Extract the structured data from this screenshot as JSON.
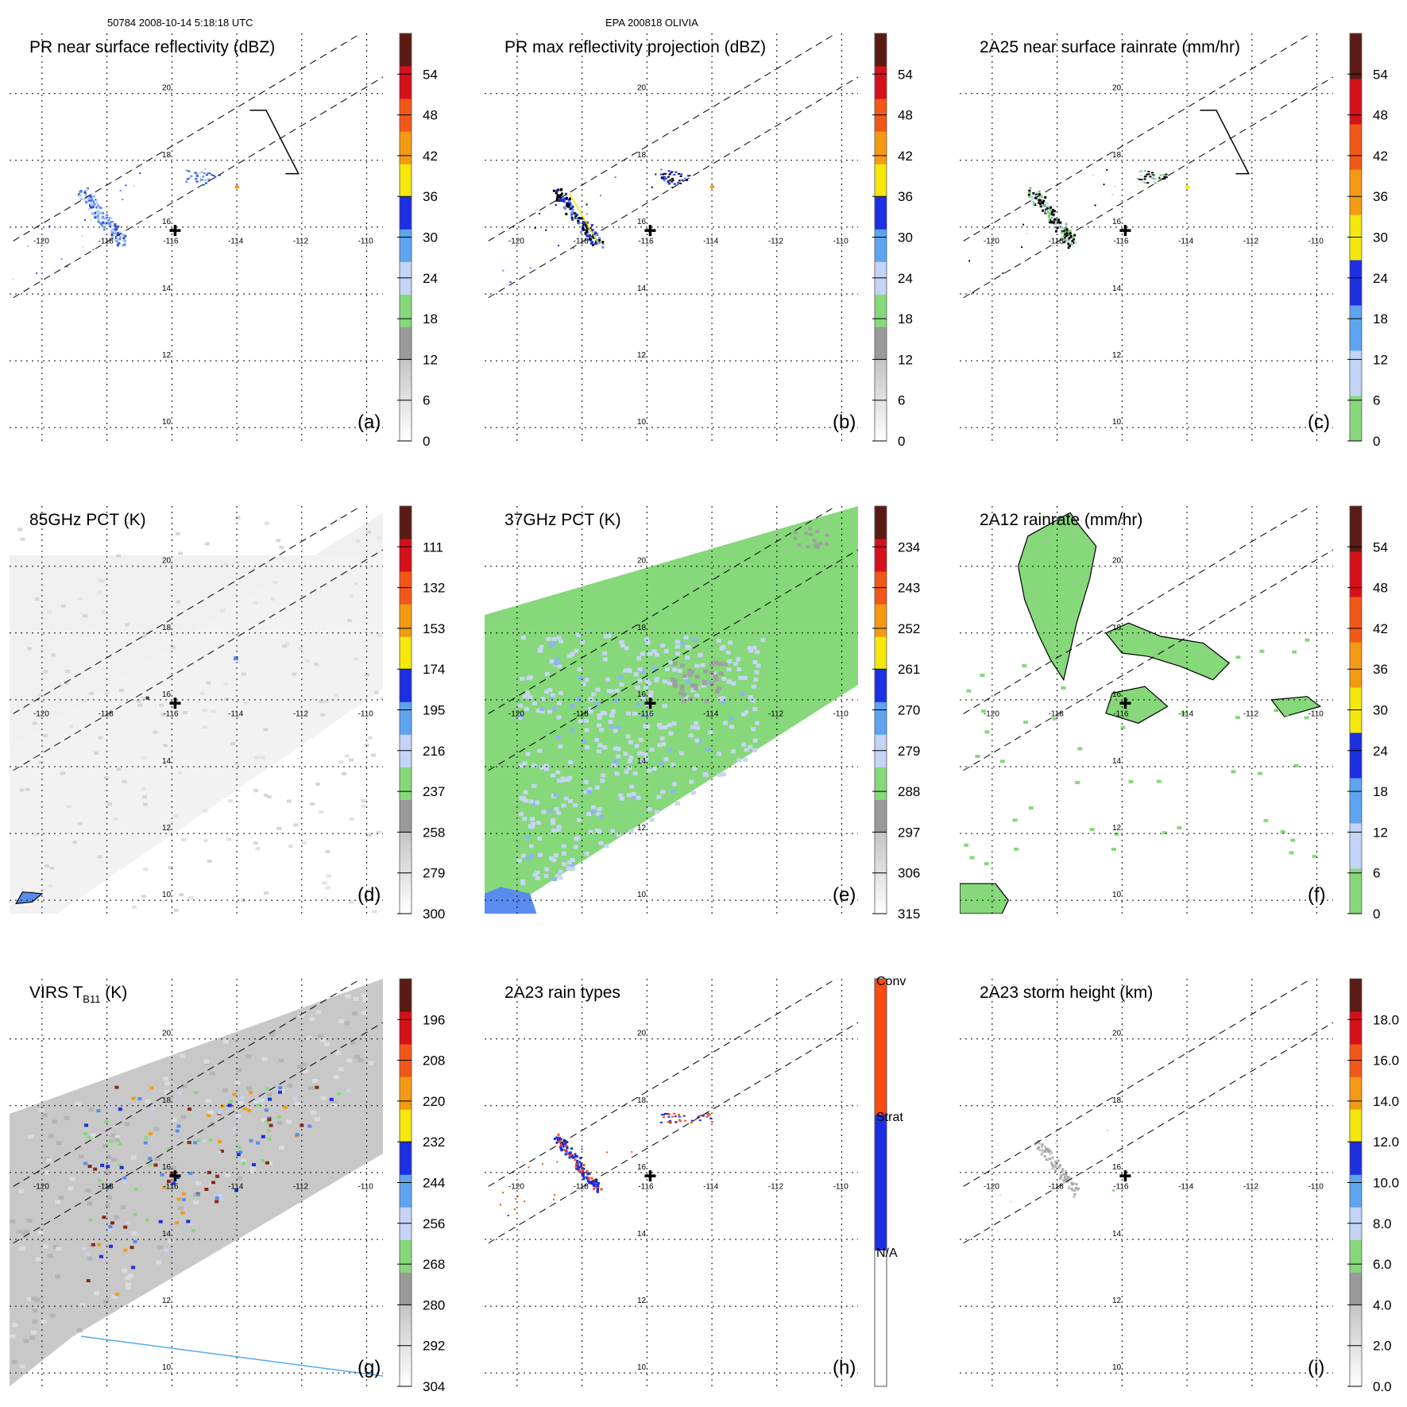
{
  "header": {
    "left": "50784 2008-10-14 5:18:18 UTC",
    "center": "EPA 200818 OLIVIA"
  },
  "colors": {
    "cbar_10": [
      "#ffffff",
      "#c9c9c9",
      "#9a9a9a",
      "#86d87a",
      "#c4d4f6",
      "#5ea4ef",
      "#1c2fe2",
      "#f5e80a",
      "#f39a12",
      "#f15716",
      "#d5101b",
      "#5b1b14"
    ],
    "cbar_rain": [
      "#86d87a",
      "#c4d4f6",
      "#5ea4ef",
      "#1c2fe2",
      "#f5e80a",
      "#f39a12",
      "#f15716",
      "#d5101b",
      "#5b1b14"
    ],
    "raintype": [
      "#ffffff",
      "#1c2fe2",
      "#ff4c10"
    ],
    "pr_blue": "#5a8cf0",
    "pr_green": "#6fcf6a",
    "light_blue": "#c7d5f5",
    "map_green": "#86d87a",
    "orange": "#f39a12",
    "dark_red": "#b22a20",
    "swath_line": "#55aaee"
  },
  "chart_data": [
    {
      "id": "a",
      "type": "heatmap",
      "title": "PR near surface reflectivity (dBZ)",
      "panel_label": "(a)",
      "cbar_ticks": [
        "0",
        "6",
        "12",
        "18",
        "24",
        "30",
        "36",
        "42",
        "48",
        "54"
      ],
      "cbar_style": "dbz",
      "swath": true,
      "bracket": true,
      "data_layer": "pr_sfc",
      "xlim": [
        -121,
        -109.5
      ],
      "ylim": [
        9.6,
        21.8
      ],
      "xticks": [
        "-120",
        "-118",
        "-116",
        "-114",
        "-112",
        "-110"
      ],
      "yticks": [
        "10",
        "12",
        "14",
        "16",
        "18",
        "20"
      ]
    },
    {
      "id": "b",
      "type": "heatmap",
      "title": "PR max reflectivity projection (dBZ)",
      "panel_label": "(b)",
      "cbar_ticks": [
        "0",
        "6",
        "12",
        "18",
        "24",
        "30",
        "36",
        "42",
        "48",
        "54"
      ],
      "cbar_style": "dbz",
      "swath": true,
      "bracket": false,
      "data_layer": "pr_max",
      "xlim": [
        -121,
        -109.5
      ],
      "ylim": [
        9.6,
        21.8
      ],
      "xticks": [
        "-120",
        "-118",
        "-116",
        "-114",
        "-112",
        "-110"
      ],
      "yticks": [
        "10",
        "12",
        "14",
        "16",
        "18",
        "20"
      ]
    },
    {
      "id": "c",
      "type": "heatmap",
      "title": "2A25 near surface rainrate (mm/hr)",
      "panel_label": "(c)",
      "cbar_ticks": [
        "0",
        "6",
        "12",
        "18",
        "24",
        "30",
        "36",
        "42",
        "48",
        "54"
      ],
      "cbar_style": "rain",
      "swath": true,
      "bracket": true,
      "data_layer": "rain_2a25",
      "xlim": [
        -121,
        -109.5
      ],
      "ylim": [
        9.6,
        21.8
      ],
      "xticks": [
        "-120",
        "-118",
        "-116",
        "-114",
        "-112",
        "-110"
      ],
      "yticks": [
        "10",
        "12",
        "14",
        "16",
        "18",
        "20"
      ]
    },
    {
      "id": "d",
      "type": "heatmap",
      "title": "85GHz PCT (K)",
      "panel_label": "(d)",
      "cbar_ticks": [
        "300",
        "279",
        "258",
        "237",
        "216",
        "195",
        "174",
        "153",
        "132",
        "111"
      ],
      "cbar_style": "dbz",
      "swath": true,
      "bracket": false,
      "data_layer": "tmi85",
      "xlim": [
        -121,
        -109.5
      ],
      "ylim": [
        9.6,
        21.8
      ],
      "xticks": [
        "-120",
        "-118",
        "-116",
        "-114",
        "-112",
        "-110"
      ],
      "yticks": [
        "10",
        "12",
        "14",
        "16",
        "18",
        "20"
      ]
    },
    {
      "id": "e",
      "type": "heatmap",
      "title": "37GHz PCT (K)",
      "panel_label": "(e)",
      "cbar_ticks": [
        "315",
        "306",
        "297",
        "288",
        "279",
        "270",
        "261",
        "252",
        "243",
        "234"
      ],
      "cbar_style": "dbz",
      "swath": true,
      "bracket": false,
      "data_layer": "tmi37",
      "xlim": [
        -121,
        -109.5
      ],
      "ylim": [
        9.6,
        21.8
      ],
      "xticks": [
        "-120",
        "-118",
        "-116",
        "-114",
        "-112",
        "-110"
      ],
      "yticks": [
        "10",
        "12",
        "14",
        "16",
        "18",
        "20"
      ]
    },
    {
      "id": "f",
      "type": "heatmap",
      "title": "2A12 rainrate (mm/hr)",
      "panel_label": "(f)",
      "cbar_ticks": [
        "0",
        "6",
        "12",
        "18",
        "24",
        "30",
        "36",
        "42",
        "48",
        "54"
      ],
      "cbar_style": "rain",
      "swath": true,
      "bracket": false,
      "data_layer": "rain_2a12",
      "xlim": [
        -121,
        -109.5
      ],
      "ylim": [
        9.6,
        21.8
      ],
      "xticks": [
        "-120",
        "-118",
        "-116",
        "-114",
        "-112",
        "-110"
      ],
      "yticks": [
        "10",
        "12",
        "14",
        "16",
        "18",
        "20"
      ]
    },
    {
      "id": "g",
      "type": "heatmap",
      "title": "VIRS T",
      "title_sub": "B11",
      "title_suffix": " (K)",
      "panel_label": "(g)",
      "cbar_ticks": [
        "304",
        "292",
        "280",
        "268",
        "256",
        "244",
        "232",
        "220",
        "208",
        "196"
      ],
      "cbar_style": "dbz",
      "swath": true,
      "bracket": false,
      "data_layer": "virs",
      "xlim": [
        -121,
        -109.5
      ],
      "ylim": [
        9.6,
        21.8
      ],
      "xticks": [
        "-120",
        "-118",
        "-116",
        "-114",
        "-112",
        "-110"
      ],
      "yticks": [
        "10",
        "12",
        "14",
        "16",
        "18",
        "20"
      ]
    },
    {
      "id": "h",
      "type": "heatmap",
      "title": "2A23 rain types",
      "panel_label": "(h)",
      "cbar_ticks": [
        "N/A",
        "Strat",
        "Conv"
      ],
      "cbar_style": "type",
      "swath": true,
      "bracket": false,
      "data_layer": "raintype",
      "xlim": [
        -121,
        -109.5
      ],
      "ylim": [
        9.6,
        21.8
      ],
      "xticks": [
        "-120",
        "-118",
        "-116",
        "-114",
        "-112",
        "-110"
      ],
      "yticks": [
        "10",
        "12",
        "14",
        "16",
        "18",
        "20"
      ]
    },
    {
      "id": "i",
      "type": "heatmap",
      "title": "2A23 storm height (km)",
      "panel_label": "(i)",
      "cbar_ticks": [
        "0.0",
        "2.0",
        "4.0",
        "6.0",
        "8.0",
        "10.0",
        "12.0",
        "14.0",
        "16.0",
        "18.0"
      ],
      "cbar_style": "dbz",
      "swath": true,
      "bracket": false,
      "data_layer": "height",
      "xlim": [
        -121,
        -109.5
      ],
      "ylim": [
        9.6,
        21.8
      ],
      "xticks": [
        "-120",
        "-118",
        "-116",
        "-114",
        "-112",
        "-110"
      ],
      "yticks": [
        "10",
        "12",
        "14",
        "16",
        "18",
        "20"
      ]
    }
  ]
}
